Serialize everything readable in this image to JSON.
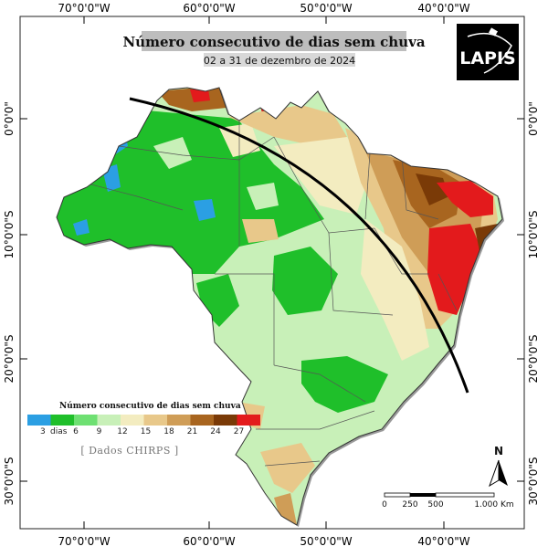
{
  "title": "Número consecutivo de dias sem chuva",
  "subtitle": "02 a 31 de dezembro de 2024",
  "logo": {
    "text": "LAPIS"
  },
  "axes": {
    "longitude_ticks": [
      "70°0'0\"W",
      "60°0'0\"W",
      "50°0'0\"W",
      "40°0'0\"W"
    ],
    "latitude_ticks": [
      "0°0'0\"",
      "10°0'0\"S",
      "20°0'0\"S",
      "30°0'0\"S"
    ]
  },
  "legend": {
    "title": "Número consecutivo de dias sem chuva",
    "first_label": "3",
    "first_unit": "dias",
    "labels": [
      "6",
      "9",
      "12",
      "15",
      "18",
      "21",
      "24",
      "27"
    ],
    "colors": [
      "#2b9fe3",
      "#1fbf2a",
      "#6ee072",
      "#c8f0b8",
      "#f3ecc0",
      "#e8c88a",
      "#cf9d57",
      "#a8651f",
      "#7a3a07",
      "#e31a1c"
    ]
  },
  "source": "[ Dados CHIRPS ]",
  "scale_bar": {
    "labels": [
      "0",
      "250",
      "500",
      "1.000 Km"
    ]
  },
  "north_label": "N"
}
